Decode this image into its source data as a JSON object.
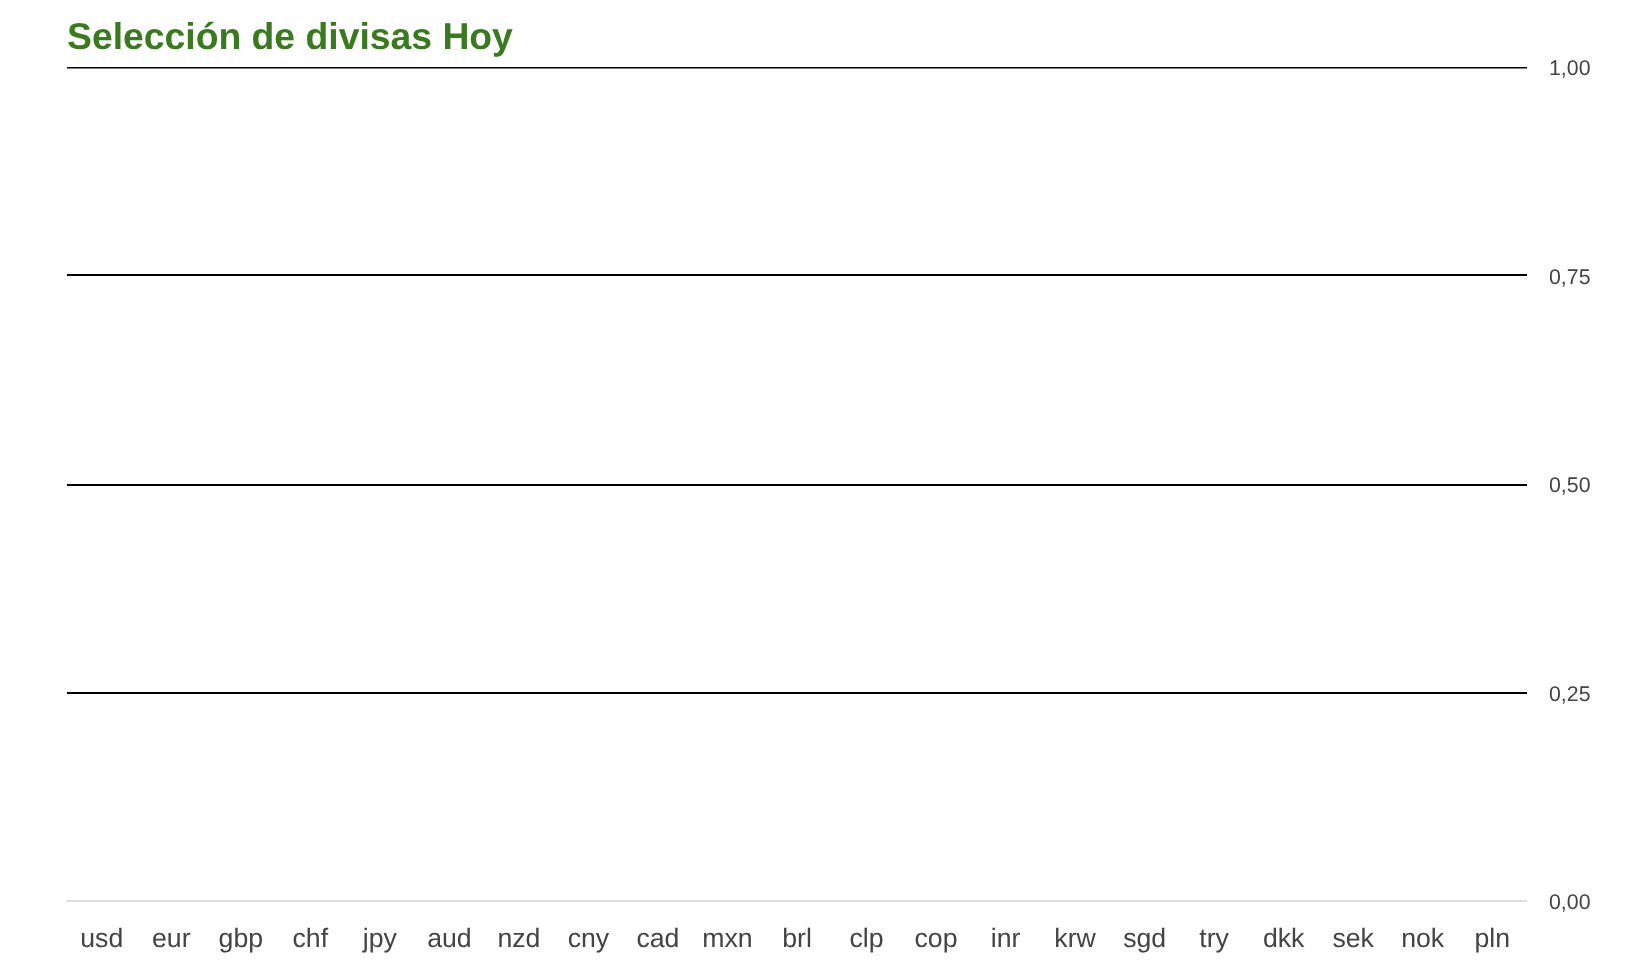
{
  "chart_data": {
    "type": "bar",
    "title": "Selección de divisas Hoy",
    "categories": [
      "usd",
      "eur",
      "gbp",
      "chf",
      "jpy",
      "aud",
      "nzd",
      "cny",
      "cad",
      "mxn",
      "brl",
      "clp",
      "cop",
      "inr",
      "krw",
      "sgd",
      "try",
      "dkk",
      "sek",
      "nok",
      "pln"
    ],
    "values": [
      0,
      0,
      0,
      0,
      0,
      0,
      0,
      0,
      0,
      0,
      0,
      0,
      0,
      0,
      0,
      0,
      0,
      0,
      0,
      0,
      0
    ],
    "ylim": [
      0,
      1
    ],
    "yticks": [
      {
        "value": 0,
        "label": "0,00"
      },
      {
        "value": 0.25,
        "label": "0,25"
      },
      {
        "value": 0.5,
        "label": "0,50"
      },
      {
        "value": 0.75,
        "label": "0,75"
      },
      {
        "value": 1,
        "label": "1,00"
      }
    ],
    "grid": "y"
  }
}
